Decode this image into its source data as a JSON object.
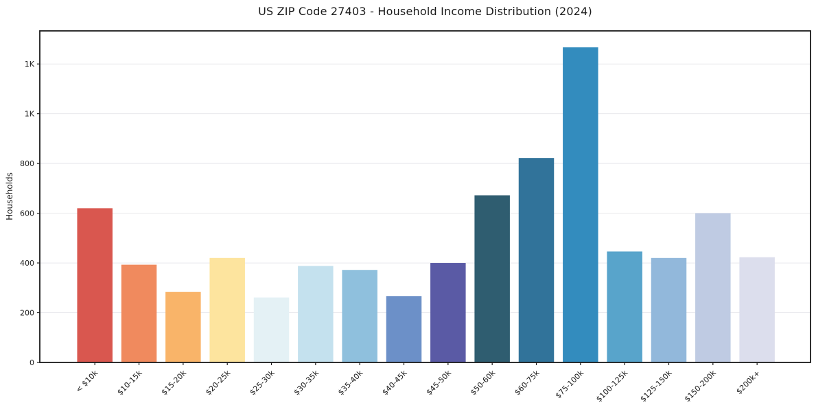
{
  "chart_data": {
    "type": "bar",
    "title": "US ZIP Code 27403 - Household Income Distribution (2024)",
    "xlabel": "",
    "ylabel": "Households",
    "categories": [
      "< $10k",
      "$10-15k",
      "$15-20k",
      "$20-25k",
      "$25-30k",
      "$30-35k",
      "$35-40k",
      "$40-45k",
      "$45-50k",
      "$50-60k",
      "$60-75k",
      "$75-100k",
      "$100-125k",
      "$125-150k",
      "$150-200k",
      "$200k+"
    ],
    "values": [
      620,
      393,
      284,
      420,
      261,
      388,
      372,
      267,
      400,
      672,
      822,
      1267,
      446,
      420,
      600,
      423
    ],
    "bar_colors": [
      "#d9574f",
      "#f08a5e",
      "#f9b469",
      "#fde49e",
      "#e4f1f5",
      "#c4e1ee",
      "#8fc0dd",
      "#6c90c8",
      "#5a5aa5",
      "#2f5d70",
      "#31739a",
      "#338cbe",
      "#58a4cb",
      "#92b8db",
      "#bfcbe3",
      "#dcdeed"
    ],
    "y_ticks": {
      "values": [
        0,
        200,
        400,
        600,
        800,
        1000,
        1200
      ],
      "labels": [
        "0",
        "200",
        "400",
        "600",
        "800",
        "1K",
        "1K"
      ]
    },
    "ylim": [
      0,
      1333
    ],
    "grid": "horizontal",
    "legend": "none"
  },
  "colors": {
    "background": "#ffffff",
    "grid": "#e8e8ec",
    "spine": "#1a1a1a",
    "text": "#1a1a1a",
    "tick": "#1a1a1a"
  }
}
